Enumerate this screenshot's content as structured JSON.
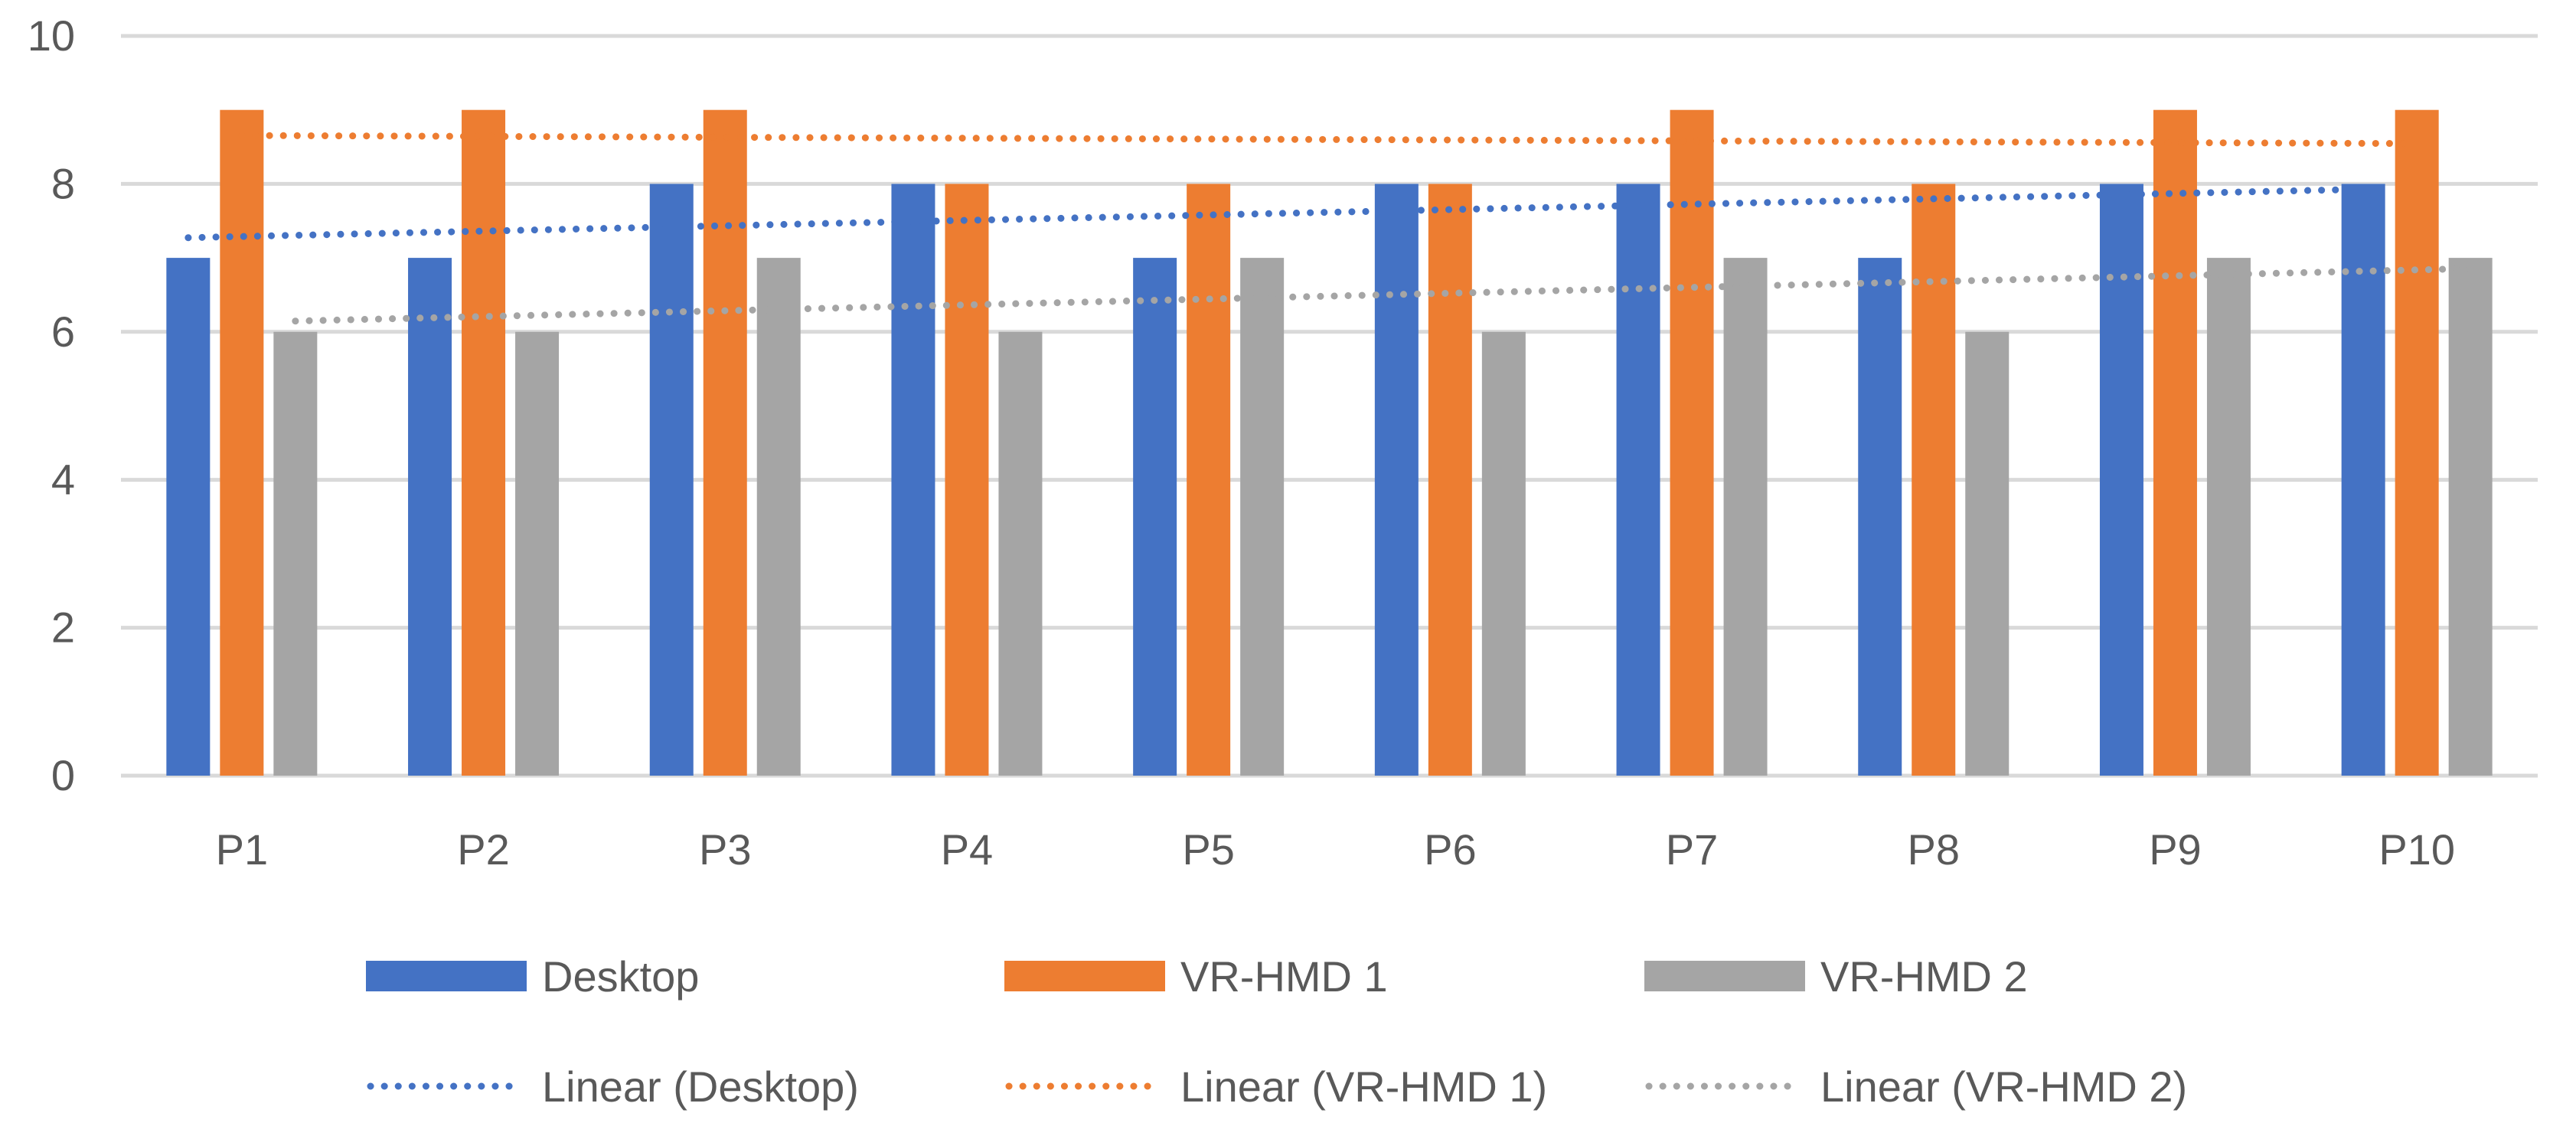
{
  "chart_data": {
    "type": "bar",
    "title": "",
    "xlabel": "",
    "ylabel": "",
    "categories": [
      "P1",
      "P2",
      "P3",
      "P4",
      "P5",
      "P6",
      "P7",
      "P8",
      "P9",
      "P10"
    ],
    "ylim": [
      0,
      10
    ],
    "yticks": [
      0,
      2,
      4,
      6,
      8,
      10
    ],
    "ytick_labels": [
      "0",
      "2",
      "4",
      "6",
      "8",
      "10"
    ],
    "grid": true,
    "legend_position": "bottom",
    "series": [
      {
        "name": "Desktop",
        "color": "#4472C4",
        "values": [
          7,
          7,
          8,
          8,
          7,
          8,
          8,
          7,
          8,
          8
        ]
      },
      {
        "name": "VR-HMD 1",
        "color": "#ED7D31",
        "values": [
          9,
          9,
          9,
          8,
          8,
          8,
          9,
          8,
          9,
          9
        ]
      },
      {
        "name": "VR-HMD 2",
        "color": "#A5A5A5",
        "values": [
          6,
          6,
          7,
          6,
          7,
          6,
          7,
          6,
          7,
          7
        ]
      }
    ],
    "trendlines": [
      {
        "name": "Linear (Desktop)",
        "color": "#4472C4",
        "style": "dotted",
        "fit": "linear",
        "source_series": "Desktop"
      },
      {
        "name": "Linear (VR-HMD 1)",
        "color": "#ED7D31",
        "style": "dotted",
        "fit": "linear",
        "source_series": "VR-HMD 1"
      },
      {
        "name": "Linear (VR-HMD 2)",
        "color": "#A5A5A5",
        "style": "dotted",
        "fit": "linear",
        "source_series": "VR-HMD 2"
      }
    ]
  }
}
